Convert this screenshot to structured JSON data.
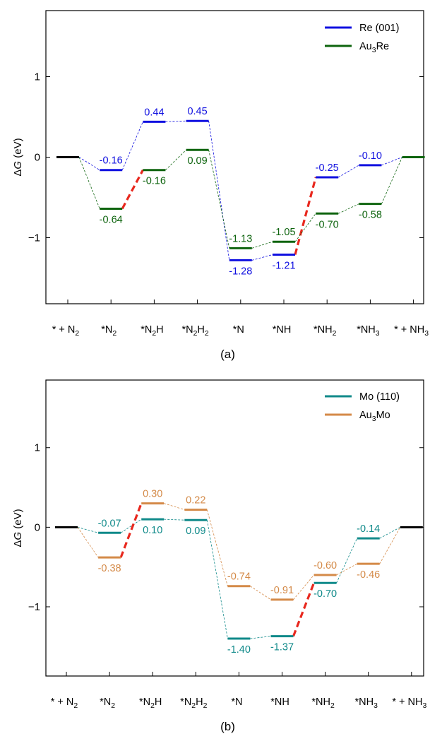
{
  "colors": {
    "reference": "#000000",
    "rds": "#e8281e",
    "re": "#1010e0",
    "au3re": "#0e640e",
    "mo": "#108a8a",
    "au3mo": "#d48a48"
  },
  "chart_data": [
    {
      "type": "line",
      "panel_label": "(a)",
      "ylabel": "ΔG (eV)",
      "ylim": [
        -1.82,
        1.82
      ],
      "yticks": [
        -1,
        0,
        1
      ],
      "ytick_labels": [
        "−1",
        "0",
        "1"
      ],
      "categories": [
        "* + N2",
        "*N2",
        "*N2H",
        "*N2H2",
        "*N",
        "*NH",
        "*NH2",
        "*NH3",
        "* + NH3"
      ],
      "reference": {
        "index": 0,
        "value": 0,
        "end_index": 8
      },
      "legend_position": "top-right",
      "series": [
        {
          "name": "Re (001)",
          "color_key": "re",
          "values": [
            0,
            -0.16,
            0.44,
            0.45,
            -1.28,
            -1.21,
            -0.25,
            -0.1,
            0
          ],
          "labels": [
            "",
            "-0.16",
            "0.44",
            "0.45",
            "-1.28",
            "-1.21",
            "-0.25",
            "-0.10",
            ""
          ],
          "label_side": [
            "",
            "above",
            "above",
            "above",
            "below",
            "below",
            "above",
            "above",
            ""
          ],
          "rds_step": [
            5,
            6
          ]
        },
        {
          "name": "Au3Re",
          "color_key": "au3re",
          "values": [
            0,
            -0.64,
            -0.16,
            0.09,
            -1.13,
            -1.05,
            -0.7,
            -0.58,
            0
          ],
          "labels": [
            "",
            "-0.64",
            "-0.16",
            "0.09",
            "-1.13",
            "-1.05",
            "-0.70",
            "-0.58",
            ""
          ],
          "label_side": [
            "",
            "below",
            "below",
            "below",
            "above",
            "above",
            "below",
            "below",
            ""
          ],
          "rds_step": [
            1,
            2
          ]
        }
      ]
    },
    {
      "type": "line",
      "panel_label": "(b)",
      "ylabel": "ΔG (eV)",
      "ylim": [
        -1.87,
        1.85
      ],
      "yticks": [
        -1,
        0,
        1
      ],
      "ytick_labels": [
        "−1",
        "0",
        "1"
      ],
      "categories": [
        "* + N2",
        "*N2",
        "*N2H",
        "*N2H2",
        "*N",
        "*NH",
        "*NH2",
        "*NH3",
        "* + NH3"
      ],
      "reference": {
        "index": 0,
        "value": 0,
        "end_index": 8
      },
      "legend_position": "top-right",
      "series": [
        {
          "name": "Mo (110)",
          "color_key": "mo",
          "values": [
            0,
            -0.07,
            0.1,
            0.09,
            -1.4,
            -1.37,
            -0.7,
            -0.14,
            0
          ],
          "labels": [
            "",
            "-0.07",
            "0.10",
            "0.09",
            "-1.40",
            "-1.37",
            "-0.70",
            "-0.14",
            ""
          ],
          "label_side": [
            "",
            "above",
            "below",
            "below",
            "below",
            "below",
            "below",
            "above",
            ""
          ],
          "rds_step": [
            5,
            6
          ]
        },
        {
          "name": "Au3Mo",
          "color_key": "au3mo",
          "values": [
            0,
            -0.38,
            0.3,
            0.22,
            -0.74,
            -0.91,
            -0.6,
            -0.46,
            0
          ],
          "labels": [
            "",
            "-0.38",
            "0.30",
            "0.22",
            "-0.74",
            "-0.91",
            "-0.60",
            "-0.46",
            ""
          ],
          "label_side": [
            "",
            "below",
            "above",
            "above",
            "above",
            "above",
            "above",
            "below",
            ""
          ],
          "rds_step": [
            1,
            2
          ]
        }
      ]
    }
  ]
}
